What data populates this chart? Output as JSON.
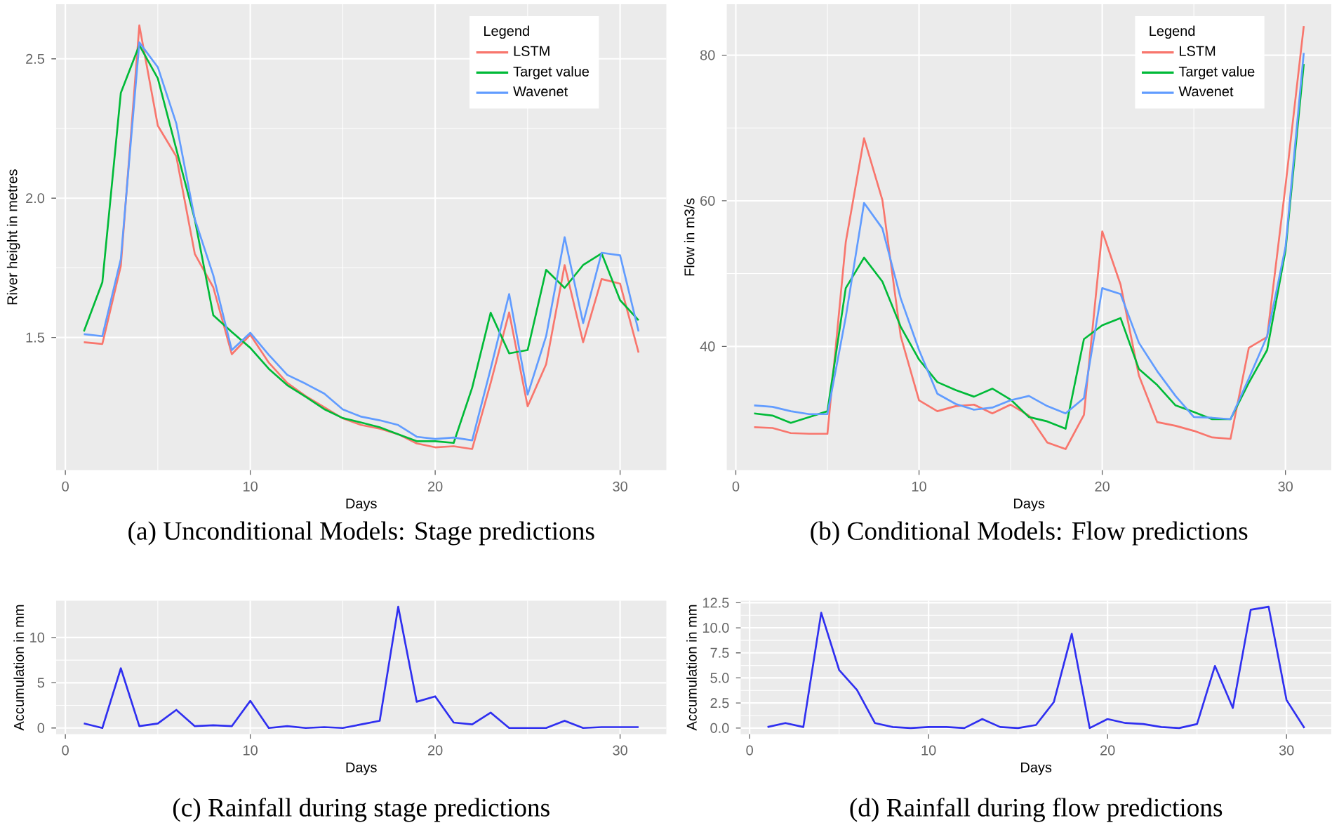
{
  "chart_data": [
    {
      "type": "line",
      "xlabel": "Days",
      "ylabel": "River height in metres",
      "legend_title": "Legend",
      "legend": "top right",
      "grid": true,
      "x": [
        1,
        2,
        3,
        4,
        5,
        6,
        7,
        8,
        9,
        10,
        11,
        12,
        13,
        14,
        15,
        16,
        17,
        18,
        19,
        20,
        21,
        22,
        23,
        24,
        25,
        26,
        27,
        28,
        29,
        30,
        31
      ],
      "xlim": [
        -0.5,
        32.5
      ],
      "xticks": [
        0,
        10,
        20,
        30
      ],
      "ylim": [
        1.024,
        2.696
      ],
      "yticks": [
        1.5,
        {
          "value": 2.0,
          "label": "2.0"
        },
        2.5
      ],
      "series": [
        {
          "name": "LSTM",
          "color": "#f8766d",
          "values": [
            1.483,
            1.477,
            1.757,
            2.62,
            2.26,
            2.15,
            1.8,
            1.68,
            1.44,
            1.51,
            1.41,
            1.337,
            1.29,
            1.25,
            1.21,
            1.186,
            1.173,
            1.153,
            1.12,
            1.106,
            1.11,
            1.1,
            1.337,
            1.59,
            1.253,
            1.404,
            1.76,
            1.483,
            1.71,
            1.693,
            1.446
          ]
        },
        {
          "name": "Target value",
          "color": "#00ba38",
          "values": [
            1.522,
            1.698,
            2.378,
            2.549,
            2.43,
            2.176,
            1.924,
            1.58,
            1.52,
            1.463,
            1.388,
            1.329,
            1.287,
            1.243,
            1.211,
            1.195,
            1.178,
            1.153,
            1.128,
            1.128,
            1.122,
            1.32,
            1.589,
            1.443,
            1.455,
            1.743,
            1.678,
            1.76,
            1.802,
            1.634,
            1.562
          ]
        },
        {
          "name": "Wavenet",
          "color": "#619cff",
          "values": [
            1.512,
            1.505,
            1.782,
            2.559,
            2.47,
            2.268,
            1.925,
            1.723,
            1.455,
            1.517,
            1.438,
            1.366,
            1.334,
            1.299,
            1.242,
            1.216,
            1.203,
            1.186,
            1.144,
            1.136,
            1.141,
            1.131,
            1.388,
            1.656,
            1.295,
            1.505,
            1.86,
            1.552,
            1.804,
            1.795,
            1.522
          ]
        }
      ],
      "annotations": [
        "(a) Unconditional Models: Stage predictions"
      ]
    },
    {
      "type": "line",
      "xlabel": "Days",
      "ylabel": "Flow in m3/s",
      "legend_title": "Legend",
      "legend": "top right",
      "grid": true,
      "x": [
        1,
        2,
        3,
        4,
        5,
        6,
        7,
        8,
        9,
        10,
        11,
        12,
        13,
        14,
        15,
        16,
        17,
        18,
        19,
        20,
        21,
        22,
        23,
        24,
        25,
        26,
        27,
        28,
        29,
        30,
        31
      ],
      "xlim": [
        -0.5,
        32.5
      ],
      "xticks": [
        0,
        10,
        20,
        30
      ],
      "ylim": [
        23,
        87
      ],
      "yticks": [
        40,
        60,
        80
      ],
      "series": [
        {
          "name": "LSTM",
          "color": "#f8766d",
          "values": [
            28.9,
            28.8,
            28.1,
            28.0,
            28.0,
            54.3,
            68.6,
            60.1,
            41.4,
            32.6,
            31.1,
            31.8,
            32.0,
            30.8,
            32.0,
            30.5,
            26.8,
            25.9,
            30.6,
            55.8,
            48.5,
            36.0,
            29.6,
            29.1,
            28.4,
            27.5,
            27.3,
            39.8,
            41.3,
            62.0,
            84.0
          ]
        },
        {
          "name": "Target value",
          "color": "#00ba38",
          "values": [
            30.8,
            30.5,
            29.5,
            30.3,
            31.1,
            48.0,
            52.2,
            48.9,
            42.7,
            38.2,
            35.1,
            34.0,
            33.1,
            34.2,
            32.7,
            30.3,
            29.7,
            28.7,
            41.0,
            42.9,
            43.9,
            36.9,
            34.7,
            31.9,
            31.0,
            30.0,
            30.0,
            35.0,
            39.5,
            53.1,
            78.8
          ]
        },
        {
          "name": "Wavenet",
          "color": "#619cff",
          "values": [
            31.9,
            31.7,
            31.1,
            30.7,
            30.7,
            44.0,
            59.7,
            56.2,
            46.6,
            39.5,
            33.5,
            32.1,
            31.3,
            31.6,
            32.6,
            33.2,
            31.8,
            30.8,
            32.9,
            48.0,
            47.2,
            40.5,
            36.6,
            33.2,
            30.3,
            30.2,
            30.0,
            35.6,
            41.4,
            53.6,
            80.3
          ]
        }
      ],
      "annotations": [
        "(b) Conditional Models: Flow predictions"
      ]
    },
    {
      "type": "line",
      "xlabel": "Days",
      "ylabel": "Accumulation in mm",
      "grid": true,
      "x": [
        1,
        2,
        3,
        4,
        5,
        6,
        7,
        8,
        9,
        10,
        11,
        12,
        13,
        14,
        15,
        16,
        17,
        18,
        19,
        20,
        21,
        22,
        23,
        24,
        25,
        26,
        27,
        28,
        29,
        30,
        31
      ],
      "xlim": [
        -0.5,
        32.5
      ],
      "xticks": [
        0,
        10,
        20,
        30
      ],
      "ylim": [
        -0.67,
        14.07
      ],
      "yticks": [
        0,
        5,
        10
      ],
      "series": [
        {
          "color": "#2f2ff0",
          "values": [
            0.5,
            0,
            6.6,
            0.2,
            0.5,
            2.0,
            0.2,
            0.3,
            0.2,
            3.0,
            0,
            0.2,
            0,
            0.1,
            0,
            0.4,
            0.8,
            13.4,
            2.9,
            3.5,
            0.6,
            0.4,
            1.7,
            0,
            0,
            0,
            0.8,
            0,
            0.1,
            0.1,
            0.1
          ]
        }
      ],
      "annotations": [
        "(c) Rainfall during stage predictions"
      ]
    },
    {
      "type": "line",
      "xlabel": "Days",
      "ylabel": "Accumulation in mm",
      "grid": true,
      "x": [
        1,
        2,
        3,
        4,
        5,
        6,
        7,
        8,
        9,
        10,
        11,
        12,
        13,
        14,
        15,
        16,
        17,
        18,
        19,
        20,
        21,
        22,
        23,
        24,
        25,
        26,
        27,
        28,
        29,
        30,
        31
      ],
      "xlim": [
        -0.5,
        32.5
      ],
      "xticks": [
        0,
        10,
        20,
        30
      ],
      "ylim": [
        -0.6,
        12.7
      ],
      "yticks": [
        {
          "value": 0,
          "label": "0.0"
        },
        2.5,
        {
          "value": 5,
          "label": "5.0"
        },
        7.5,
        {
          "value": 10,
          "label": "10.0"
        },
        12.5
      ],
      "series": [
        {
          "color": "#2f2ff0",
          "values": [
            0.1,
            0.5,
            0.1,
            11.5,
            5.8,
            3.8,
            0.5,
            0.1,
            0,
            0.1,
            0.1,
            0,
            0.9,
            0.1,
            0,
            0.3,
            2.6,
            9.4,
            0,
            0.9,
            0.5,
            0.4,
            0.1,
            0,
            0.4,
            6.2,
            2.0,
            11.8,
            12.1,
            2.8,
            0
          ]
        }
      ],
      "annotations": [
        "(d) Rainfall during flow predictions"
      ]
    }
  ]
}
